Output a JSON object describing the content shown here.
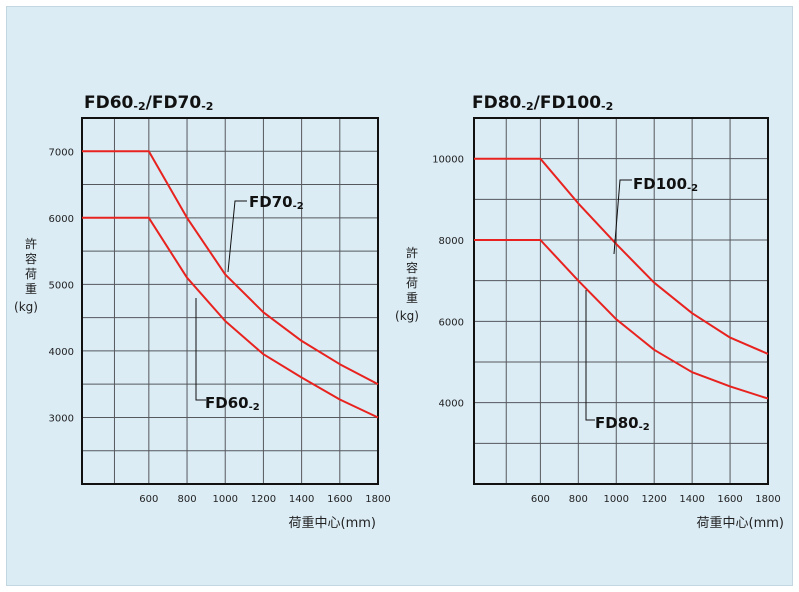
{
  "page": {
    "background": "#dbecf5",
    "plot_background": "#dbecf5",
    "curve_color": "#e8231f",
    "grid_color": "#55585c"
  },
  "chart_data": [
    {
      "type": "line",
      "title": "FD60-2/FD70-2",
      "title_parts": [
        "FD60",
        "-2",
        "/FD70",
        "-2"
      ],
      "xlabel": "荷重中心(mm)",
      "ylabel": "許容荷重(kg)",
      "ylabel_chars": [
        "許",
        "容",
        "荷",
        "重"
      ],
      "ylabel_unit": "(kg)",
      "xlim": [
        250,
        1800
      ],
      "ylim": [
        2000,
        7500
      ],
      "xticks": [
        600,
        800,
        1000,
        1200,
        1400,
        1600,
        1800
      ],
      "yticks": [
        3000,
        4000,
        5000,
        6000,
        7000
      ],
      "x_grid": [
        250,
        420,
        600,
        800,
        1000,
        1200,
        1400,
        1600,
        1800
      ],
      "y_grid": [
        2000,
        2500,
        3000,
        3500,
        4000,
        4500,
        5000,
        5500,
        6000,
        6500,
        7000,
        7500
      ],
      "series": [
        {
          "name": "FD70-2",
          "name_parts": [
            "FD70",
            "-2"
          ],
          "x": [
            250,
            600,
            800,
            1000,
            1200,
            1400,
            1600,
            1800
          ],
          "y": [
            7000,
            7000,
            6000,
            5150,
            4580,
            4150,
            3800,
            3500
          ]
        },
        {
          "name": "FD60-2",
          "name_parts": [
            "FD60",
            "-2"
          ],
          "x": [
            250,
            600,
            800,
            1000,
            1200,
            1400,
            1600,
            1800
          ],
          "y": [
            6000,
            6000,
            5100,
            4450,
            3950,
            3600,
            3270,
            3000
          ]
        }
      ]
    },
    {
      "type": "line",
      "title": "FD80-2/FD100-2",
      "title_parts": [
        "FD80",
        "-2",
        "/FD100",
        "-2"
      ],
      "xlabel": "荷重中心(mm)",
      "ylabel": "許容荷重(kg)",
      "ylabel_chars": [
        "許",
        "容",
        "荷",
        "重"
      ],
      "ylabel_unit": "(kg)",
      "xlim": [
        250,
        1800
      ],
      "ylim": [
        2000,
        11000
      ],
      "xticks": [
        600,
        800,
        1000,
        1200,
        1400,
        1600,
        1800
      ],
      "yticks": [
        4000,
        6000,
        8000,
        10000
      ],
      "x_grid": [
        250,
        420,
        600,
        800,
        1000,
        1200,
        1400,
        1600,
        1800
      ],
      "y_grid": [
        2000,
        3000,
        4000,
        5000,
        6000,
        7000,
        8000,
        9000,
        10000,
        11000
      ],
      "series": [
        {
          "name": "FD100-2",
          "name_parts": [
            "FD100",
            "-2"
          ],
          "x": [
            250,
            600,
            800,
            1000,
            1200,
            1400,
            1600,
            1800
          ],
          "y": [
            10000,
            10000,
            8900,
            7900,
            6950,
            6200,
            5600,
            5200
          ]
        },
        {
          "name": "FD80-2",
          "name_parts": [
            "FD80",
            "-2"
          ],
          "x": [
            250,
            600,
            800,
            1000,
            1200,
            1400,
            1600,
            1800
          ],
          "y": [
            8000,
            8000,
            7000,
            6050,
            5300,
            4750,
            4400,
            4100
          ]
        }
      ]
    }
  ]
}
